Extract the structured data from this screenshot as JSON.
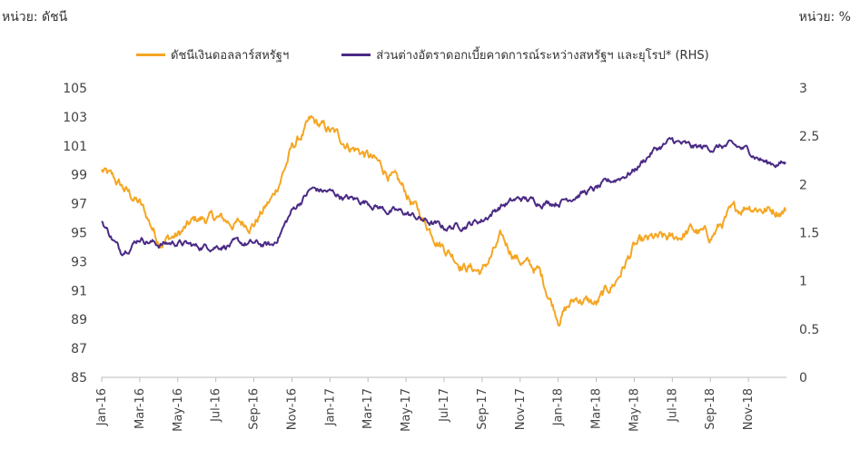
{
  "units": {
    "left": "หน่วย: ดัชนี",
    "right": "หน่วย: %"
  },
  "legend": {
    "dxy": {
      "label": "ดัชนีเงินดอลลาร์สหรัฐฯ",
      "color": "#F5A623"
    },
    "spread": {
      "label": "ส่วนต่างอัตราดอกเบี้ยคาดการณ์ระหว่างสหรัฐฯ และยุโรป* (RHS)",
      "color": "#4B2A85"
    }
  },
  "chart_data": {
    "type": "line",
    "x_labels": [
      "Jan-16",
      "Mar-16",
      "May-16",
      "Jul-16",
      "Sep-16",
      "Nov-16",
      "Jan-17",
      "Mar-17",
      "May-17",
      "Jul-17",
      "Sep-17",
      "Nov-17",
      "Jan-18",
      "Mar-18",
      "May-18",
      "Jul-18",
      "Sep-18",
      "Nov-18"
    ],
    "x_start": "Jan-16",
    "x_end": "Dec-18",
    "y_left": {
      "ticks": [
        85,
        87,
        89,
        91,
        93,
        95,
        97,
        99,
        101,
        103,
        105
      ],
      "lim": [
        85,
        105
      ]
    },
    "y_right": {
      "ticks": [
        "0",
        "0.5",
        "1",
        "1.5",
        "2",
        "2.5",
        "3"
      ],
      "lim": [
        0,
        3
      ]
    },
    "series": [
      {
        "name": "ดัชนีเงินดอลลาร์สหรัฐฯ",
        "axis": "left",
        "color": "#F5A623",
        "monthly": [
          99.3,
          98.2,
          97.0,
          94.5,
          94.8,
          95.9,
          96.0,
          95.6,
          95.7,
          97.4,
          100.8,
          102.6,
          102.0,
          101.1,
          100.3,
          99.2,
          97.7,
          95.7,
          94.1,
          92.8,
          92.3,
          94.5,
          93.1,
          92.3,
          89.2,
          90.5,
          90.0,
          91.6,
          94.0,
          94.5,
          94.5,
          95.2,
          94.7,
          96.2,
          97.0,
          96.6
        ]
      },
      {
        "name": "ส่วนต่างอัตราดอกเบี้ยคาดการณ์ระหว่างสหรัฐฯ และยุโรป* (RHS)",
        "axis": "right",
        "color": "#4B2A85",
        "monthly": [
          1.62,
          1.3,
          1.45,
          1.38,
          1.4,
          1.35,
          1.37,
          1.38,
          1.38,
          1.36,
          1.72,
          1.95,
          1.92,
          1.85,
          1.82,
          1.73,
          1.7,
          1.62,
          1.55,
          1.58,
          1.63,
          1.78,
          1.85,
          1.82,
          1.82,
          1.9,
          1.95,
          2.05,
          2.15,
          2.35,
          2.45,
          2.38,
          2.38,
          2.4,
          2.35,
          2.22
        ]
      }
    ]
  }
}
